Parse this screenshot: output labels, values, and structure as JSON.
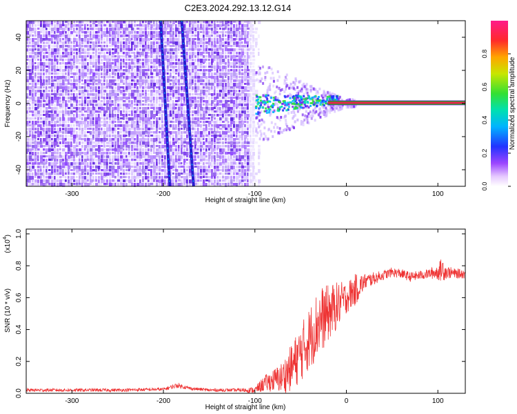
{
  "title": "C2E3.2024.292.13.12.G14",
  "colors": {
    "snr_line": "#ee3333",
    "axis": "#000000",
    "band": "#e8264a",
    "band_edge": "#2e8b3a",
    "spectral_low": "#7b2df0"
  },
  "colorbar": {
    "label": "Normalized spectral amplitude",
    "ticks": [
      "0.0",
      "0.2",
      "0.4",
      "0.6",
      "0.8"
    ],
    "tick_values": [
      0.0,
      0.2,
      0.4,
      0.6,
      0.8
    ]
  },
  "chart_data": [
    {
      "type": "heatmap",
      "name": "spectrogram",
      "title": "C2E3.2024.292.13.12.G14",
      "xlabel": "Height of straight line (km)",
      "ylabel": "Frequency (Hz)",
      "xlim": [
        -350,
        130
      ],
      "ylim": [
        -50,
        50
      ],
      "x_ticks": [
        -300,
        -200,
        -100,
        0,
        100
      ],
      "x_tick_labels": [
        "-300",
        "-200",
        "-100",
        "0",
        "100"
      ],
      "y_ticks": [
        -40,
        -20,
        0,
        20,
        40
      ],
      "y_tick_labels": [
        "-40",
        "-20",
        "0",
        "20",
        "40"
      ],
      "noise_region_x": [
        -350,
        -100
      ],
      "tracks": [
        {
          "name": "track-1",
          "x_start": -203,
          "freq_start": 50,
          "x_end": -193,
          "freq_end": -50
        },
        {
          "name": "track-2",
          "x_start": -180,
          "freq_start": 50,
          "x_end": -167,
          "freq_end": -50
        }
      ],
      "signal_band": {
        "freq": 0,
        "x_start": -20,
        "x_end": 130,
        "amplitude": 1.0
      },
      "signal_onset_x": [
        -100,
        -20
      ]
    },
    {
      "type": "line",
      "name": "snr",
      "xlabel": "Height of straight line (km)",
      "ylabel": "SNR (10 * v/v)",
      "y_multiplier": "(x10",
      "y_multiplier_exp": "4",
      "xlim": [
        -350,
        130
      ],
      "ylim": [
        0,
        1.03
      ],
      "x_ticks": [
        -300,
        -200,
        -100,
        0,
        100
      ],
      "x_tick_labels": [
        "-300",
        "-200",
        "-100",
        "0",
        "100"
      ],
      "y_ticks": [
        0.0,
        0.2,
        0.4,
        0.6,
        0.8,
        1.0
      ],
      "y_tick_labels": [
        "0.0",
        "0.2",
        "0.4",
        "0.6",
        "0.8",
        "1.0"
      ],
      "series": [
        {
          "name": "SNR",
          "x": [
            -350,
            -300,
            -250,
            -200,
            -185,
            -170,
            -150,
            -120,
            -100,
            -90,
            -80,
            -70,
            -60,
            -50,
            -40,
            -30,
            -20,
            -10,
            0,
            10,
            20,
            30,
            40,
            50,
            60,
            70,
            80,
            90,
            100,
            105,
            110,
            120,
            130
          ],
          "y": [
            0.02,
            0.02,
            0.02,
            0.025,
            0.05,
            0.03,
            0.02,
            0.02,
            0.02,
            0.06,
            0.08,
            0.1,
            0.16,
            0.25,
            0.35,
            0.45,
            0.5,
            0.55,
            0.6,
            0.65,
            0.7,
            0.72,
            0.74,
            0.76,
            0.75,
            0.73,
            0.74,
            0.75,
            0.76,
            0.78,
            0.76,
            0.75,
            0.75
          ],
          "spread": [
            0.01,
            0.01,
            0.01,
            0.01,
            0.015,
            0.01,
            0.01,
            0.01,
            0.02,
            0.05,
            0.07,
            0.1,
            0.15,
            0.18,
            0.2,
            0.22,
            0.18,
            0.15,
            0.1,
            0.1,
            0.05,
            0.04,
            0.03,
            0.03,
            0.03,
            0.03,
            0.03,
            0.03,
            0.05,
            0.08,
            0.04,
            0.03,
            0.03
          ]
        }
      ]
    }
  ]
}
